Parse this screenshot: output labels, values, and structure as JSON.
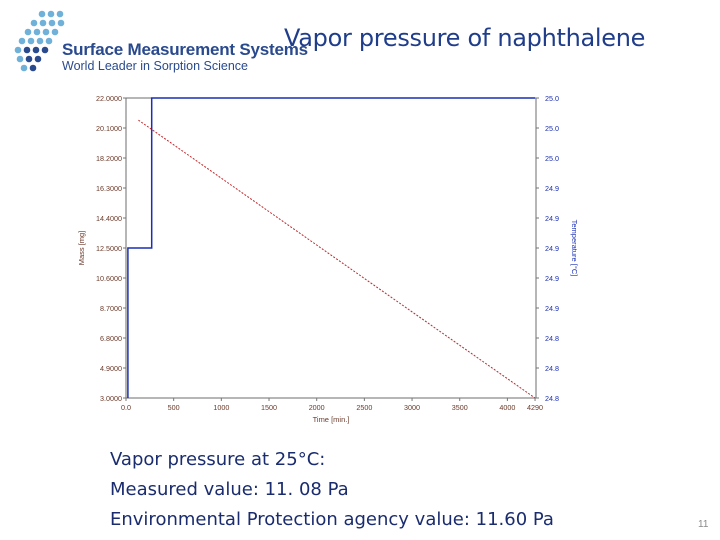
{
  "header": {
    "company_name": "Surface Measurement Systems",
    "tagline": "World Leader in Sorption Science",
    "title": "Vapor pressure of naphthalene",
    "logo_color": "#6fb1d8",
    "logo_color_alt": "#2a4a8e"
  },
  "chart_data": {
    "type": "line",
    "title": "",
    "xlabel": "Time [min.]",
    "ylabel": "Mass [mg]",
    "y2label": "Temperature [°C]",
    "xlim": [
      0,
      4300
    ],
    "ylim": [
      3.0,
      22.0
    ],
    "x_ticks": [
      "0.0",
      "500",
      "1000",
      "1500",
      "2000",
      "2500",
      "3000",
      "3500",
      "4000",
      "4290"
    ],
    "x_tick_values": [
      0,
      500,
      1000,
      1500,
      2000,
      2500,
      3000,
      3500,
      4000,
      4290
    ],
    "y_ticks": [
      "22.0000",
      "20.1000",
      "18.2000",
      "16.3000",
      "14.4000",
      "12.5000",
      "10.6000",
      "8.7000",
      "6.8000",
      "4.9000",
      "3.0000"
    ],
    "y2_ticks": [
      "25.0",
      "25.0",
      "25.0",
      "24.9",
      "24.9",
      "24.9",
      "24.9",
      "24.9",
      "24.8",
      "24.8",
      "24.8"
    ],
    "series": [
      {
        "name": "Mass",
        "color": "#c0282d",
        "style": "dashed",
        "x": [
          130,
          4290
        ],
        "y": [
          20.6,
          3.0
        ]
      },
      {
        "name": "Temperature",
        "color": "#1a2fb4",
        "style": "solid",
        "x": [
          20,
          20,
          270,
          270,
          300,
          300,
          4290
        ],
        "y": [
          3.0,
          12.5,
          12.5,
          22.0,
          22.0,
          22.0,
          22.0
        ]
      }
    ]
  },
  "caption": {
    "line1": "Vapor pressure at 25°C:",
    "line2": "Measured value: 11. 08 Pa",
    "line3": "Environmental Protection agency value: 11.60 Pa"
  },
  "slide_number": "11"
}
